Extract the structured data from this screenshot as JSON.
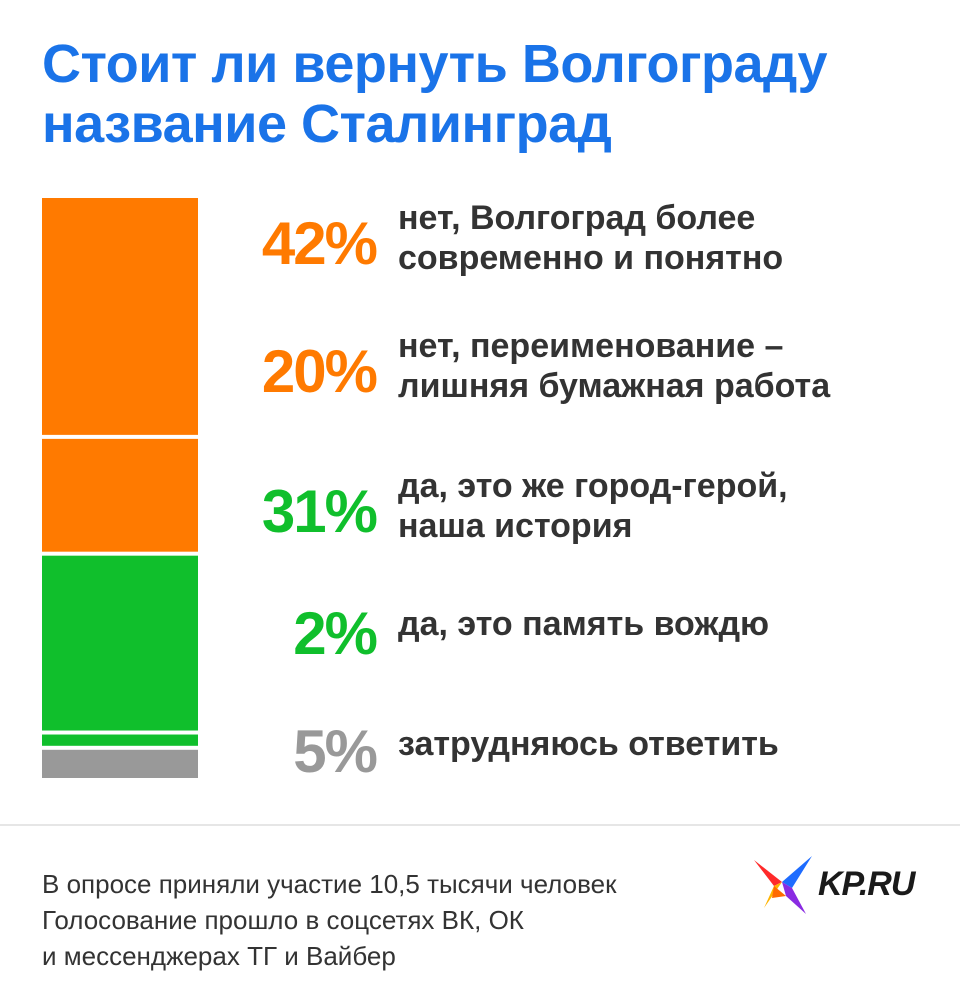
{
  "title": {
    "line1": "Стоит ли вернуть Волгограду",
    "line2": "название Сталинград"
  },
  "chart_data": {
    "type": "bar",
    "title": "Стоит ли вернуть Волгограду название Сталинград",
    "stacked": true,
    "unit": "%",
    "series": [
      {
        "name": "нет, Волгоград более современно и понятно",
        "label_lines": [
          "нет, Волгоград более",
          "современно и понятно"
        ],
        "value": 42,
        "pct_label": "42%",
        "color": "#ff7a00"
      },
      {
        "name": "нет, переименование – лишняя бумажная работа",
        "label_lines": [
          "нет, переименование –",
          "лишняя бумажная работа"
        ],
        "value": 20,
        "pct_label": "20%",
        "color": "#ff7a00"
      },
      {
        "name": "да, это же город-герой, наша история",
        "label_lines": [
          "да, это же город-герой,",
          "наша история"
        ],
        "value": 31,
        "pct_label": "31%",
        "color": "#10bf2c"
      },
      {
        "name": "да, это память вождю",
        "label_lines": [
          "да, это память вождю"
        ],
        "value": 2,
        "pct_label": "2%",
        "color": "#10bf2c"
      },
      {
        "name": "затрудняюсь ответить",
        "label_lines": [
          "затрудняюсь ответить"
        ],
        "value": 5,
        "pct_label": "5%",
        "color": "#999999"
      }
    ],
    "total": 100
  },
  "footer": {
    "line1": "В опросе приняли участие 10,5 тысячи человек",
    "line2": "Голосование прошло в соцсетях ВК, ОК",
    "line3": "и мессенджерах ТГ и Вайбер"
  },
  "logo": {
    "text": "KP.RU",
    "icon": "swallow-bird-icon"
  }
}
